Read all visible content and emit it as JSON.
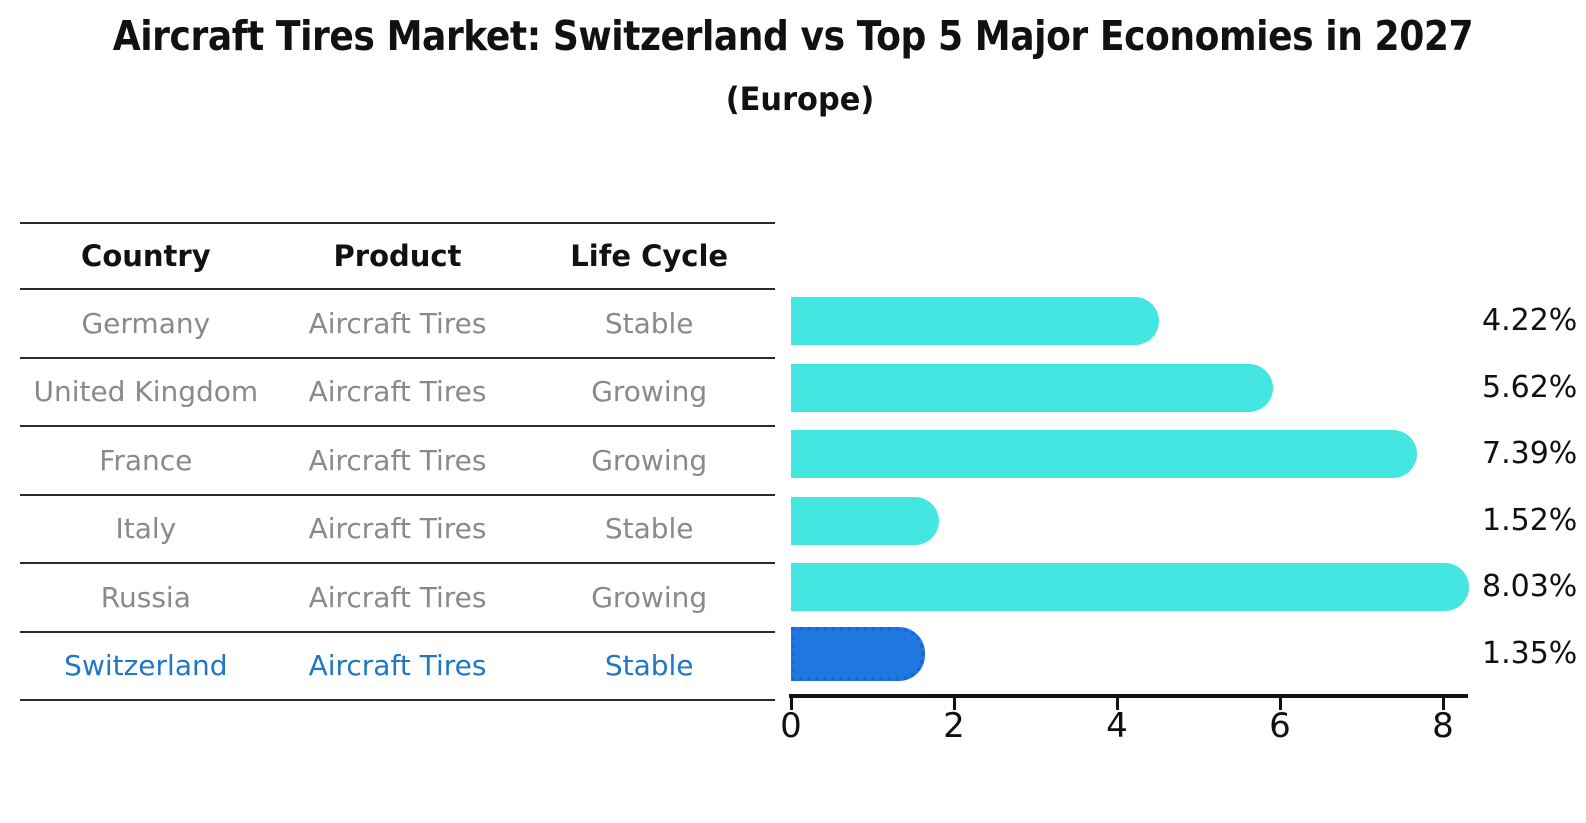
{
  "title": "Aircraft Tires Market: Switzerland vs Top 5 Major Economies in 2027",
  "subtitle": "(Europe)",
  "table": {
    "headers": [
      "Country",
      "Product",
      "Life Cycle"
    ],
    "rows": [
      {
        "country": "Germany",
        "product": "Aircraft Tires",
        "life_cycle": "Stable",
        "share_label": "4.22%",
        "value": 4.22,
        "highlight": false
      },
      {
        "country": "United Kingdom",
        "product": "Aircraft Tires",
        "life_cycle": "Growing",
        "share_label": "5.62%",
        "value": 5.62,
        "highlight": false
      },
      {
        "country": "France",
        "product": "Aircraft Tires",
        "life_cycle": "Growing",
        "share_label": "7.39%",
        "value": 7.39,
        "highlight": false
      },
      {
        "country": "Italy",
        "product": "Aircraft Tires",
        "life_cycle": "Stable",
        "share_label": "1.52%",
        "value": 1.52,
        "highlight": false
      },
      {
        "country": "Russia",
        "product": "Aircraft Tires",
        "life_cycle": "Growing",
        "share_label": "8.03%",
        "value": 8.03,
        "highlight": false
      },
      {
        "country": "Switzerland",
        "product": "Aircraft Tires",
        "life_cycle": "Stable",
        "share_label": "1.35%",
        "value": 1.35,
        "highlight": true
      }
    ]
  },
  "chart_data": {
    "type": "bar",
    "orientation": "horizontal",
    "title": "Aircraft Tires Market: Switzerland vs Top 5 Major Economies in 2027 (Europe)",
    "categories": [
      "Germany",
      "United Kingdom",
      "France",
      "Italy",
      "Russia",
      "Switzerland"
    ],
    "values": [
      4.22,
      5.62,
      7.39,
      1.52,
      8.03,
      1.35
    ],
    "data_labels": [
      "4.22%",
      "5.62%",
      "7.39%",
      "1.52%",
      "8.03%",
      "1.35%"
    ],
    "xlabel": "",
    "ylabel": "",
    "xticks": [
      0,
      2,
      4,
      6,
      8
    ],
    "xlim": [
      0,
      8.3
    ],
    "grid": false,
    "legend": false,
    "highlight_category": "Switzerland"
  },
  "colors": {
    "bar": "#43E6E0",
    "highlight_bar": "#1F78E0",
    "highlight_bar_border": "#1668d8",
    "highlight_text": "#1f77c8",
    "table_text": "#8a8a8a",
    "header_text": "#111111",
    "axis": "#111111",
    "background": "#ffffff"
  }
}
